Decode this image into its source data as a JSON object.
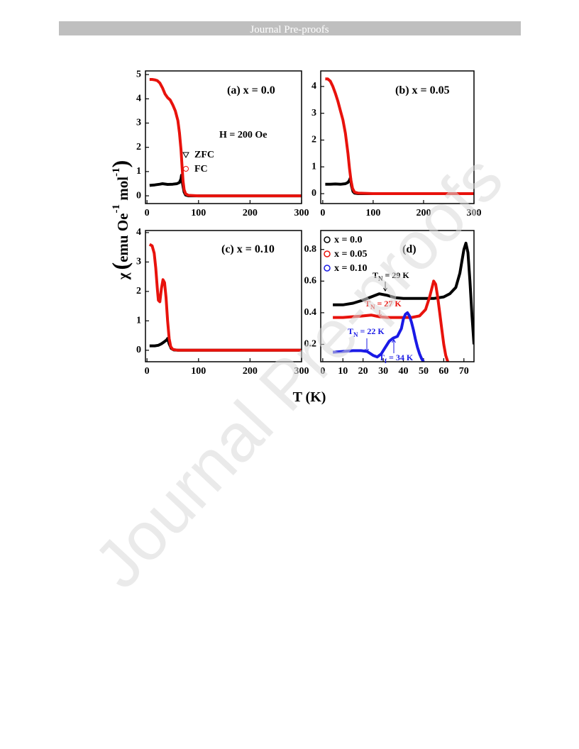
{
  "header": {
    "title": "Journal Pre-proofs"
  },
  "watermark": "Journal Pre-proofs",
  "figure": {
    "xlabel": "T (K)",
    "ylabel": {
      "symbol": "χ",
      "open": "(",
      "unit1": "emu Oe",
      "sup1": "-1",
      "unit2": " mol",
      "sup2": "-1",
      "close": ")"
    }
  },
  "chart_data": [
    {
      "type": "line",
      "title": "(a) x = 0.0",
      "annotations": [
        "H = 200 Oe"
      ],
      "xlim": [
        -3,
        300
      ],
      "ylim": [
        -0.32,
        5.15
      ],
      "xticks": [
        0,
        100,
        200,
        300
      ],
      "yticks": [
        0,
        1,
        2,
        3,
        4,
        5
      ],
      "series": [
        {
          "name": "ZFC",
          "color": "#000000",
          "marker": "triangle",
          "x": [
            5,
            15,
            25,
            30,
            40,
            50,
            58,
            63,
            66,
            67,
            69,
            72,
            75,
            80,
            100,
            150,
            200,
            250,
            300
          ],
          "values": [
            0.43,
            0.45,
            0.48,
            0.5,
            0.47,
            0.48,
            0.5,
            0.55,
            0.7,
            0.85,
            0.5,
            0.15,
            0.03,
            0,
            0,
            0,
            0,
            0,
            0
          ]
        },
        {
          "name": "FC",
          "color": "#e8120c",
          "marker": "circle",
          "x": [
            5,
            10,
            15,
            20,
            25,
            30,
            35,
            40,
            45,
            50,
            55,
            60,
            63,
            66,
            68,
            70,
            72,
            75,
            80,
            100,
            150,
            200,
            250,
            300
          ],
          "values": [
            4.8,
            4.8,
            4.78,
            4.75,
            4.65,
            4.45,
            4.2,
            4.05,
            3.95,
            3.75,
            3.5,
            3.1,
            2.6,
            1.9,
            1.2,
            0.6,
            0.25,
            0.08,
            0.02,
            0,
            0,
            0,
            0,
            0
          ]
        }
      ]
    },
    {
      "type": "line",
      "title": "(b) x = 0.05",
      "xlim": [
        -4,
        300
      ],
      "ylim": [
        -0.37,
        4.58
      ],
      "xticks": [
        0,
        100,
        200,
        300
      ],
      "yticks": [
        0,
        1,
        2,
        3,
        4
      ],
      "series": [
        {
          "color": "#000000",
          "marker": "triangle",
          "x": [
            5,
            15,
            25,
            35,
            45,
            50,
            53,
            55,
            57,
            60,
            63,
            70,
            100,
            150,
            200,
            250,
            300
          ],
          "values": [
            0.35,
            0.35,
            0.36,
            0.35,
            0.37,
            0.42,
            0.5,
            0.6,
            0.3,
            0.08,
            0.02,
            0,
            0,
            0,
            0,
            0,
            0
          ]
        },
        {
          "color": "#e8120c",
          "marker": "circle",
          "x": [
            5,
            10,
            15,
            20,
            25,
            30,
            35,
            40,
            45,
            50,
            53,
            56,
            59,
            63,
            70,
            100,
            150,
            200,
            250,
            300
          ],
          "values": [
            4.28,
            4.28,
            4.2,
            4.0,
            3.75,
            3.45,
            3.1,
            2.75,
            2.25,
            1.5,
            0.95,
            0.5,
            0.2,
            0.06,
            0.02,
            0,
            0,
            0,
            0,
            0
          ]
        }
      ]
    },
    {
      "type": "line",
      "title": "(c) x = 0.10",
      "xlim": [
        -3,
        300
      ],
      "ylim": [
        -0.39,
        4.07
      ],
      "xticks": [
        0,
        100,
        200,
        300
      ],
      "yticks": [
        0,
        1,
        2,
        3,
        4
      ],
      "series": [
        {
          "color": "#000000",
          "marker": "triangle",
          "x": [
            5,
            15,
            22,
            28,
            33,
            38,
            40,
            43,
            47,
            52,
            60,
            100,
            150,
            200,
            250,
            300
          ],
          "values": [
            0.15,
            0.15,
            0.17,
            0.22,
            0.28,
            0.35,
            0.4,
            0.22,
            0.06,
            0.01,
            0,
            0,
            0,
            0,
            0,
            0
          ]
        },
        {
          "color": "#e8120c",
          "marker": "circle",
          "x": [
            5,
            10,
            14,
            17,
            20,
            22,
            25,
            28,
            31,
            34,
            37,
            40,
            43,
            46,
            50,
            60,
            100,
            150,
            200,
            250,
            300
          ],
          "values": [
            3.6,
            3.55,
            3.3,
            2.8,
            2.1,
            1.7,
            1.65,
            2.1,
            2.4,
            2.3,
            1.8,
            1.0,
            0.4,
            0.12,
            0.03,
            0,
            0,
            0,
            0,
            0,
            0
          ]
        }
      ]
    },
    {
      "type": "line",
      "title": "(d)",
      "annotations": [
        {
          "main": "T",
          "sub": "N",
          "rest": " = 29 K",
          "color": "#000000"
        },
        {
          "main": "T",
          "sub": "N",
          "rest": " = 27 K",
          "color": "#e8120c"
        },
        {
          "main": "T",
          "sub": "N",
          "rest": " = 22 K",
          "color": "#1a1ae6"
        },
        {
          "main": "T",
          "sub": "f",
          "rest": " = 34 K",
          "color": "#1a1ae6"
        }
      ],
      "xlim": [
        -1,
        75
      ],
      "ylim": [
        0.09,
        0.92
      ],
      "xticks": [
        0,
        10,
        20,
        30,
        40,
        50,
        60,
        70
      ],
      "yticks": [
        0.2,
        0.4,
        0.6,
        0.8
      ],
      "series": [
        {
          "name": "x = 0.0",
          "color": "#000000",
          "x": [
            5,
            10,
            15,
            20,
            24,
            28,
            32,
            36,
            40,
            45,
            50,
            55,
            60,
            63,
            66,
            68,
            70,
            71,
            72,
            73,
            74,
            75
          ],
          "values": [
            0.45,
            0.45,
            0.46,
            0.48,
            0.5,
            0.52,
            0.51,
            0.495,
            0.49,
            0.49,
            0.49,
            0.49,
            0.5,
            0.52,
            0.56,
            0.65,
            0.8,
            0.84,
            0.78,
            0.6,
            0.38,
            0.2
          ]
        },
        {
          "name": "x = 0.05",
          "color": "#e8120c",
          "x": [
            5,
            10,
            15,
            20,
            24,
            28,
            32,
            38,
            44,
            48,
            51,
            53,
            55,
            56,
            57,
            58,
            59,
            60,
            61,
            62
          ],
          "values": [
            0.37,
            0.37,
            0.375,
            0.38,
            0.385,
            0.375,
            0.37,
            0.37,
            0.37,
            0.38,
            0.42,
            0.5,
            0.6,
            0.58,
            0.5,
            0.4,
            0.3,
            0.2,
            0.13,
            0.09
          ]
        },
        {
          "name": "x = 0.10",
          "color": "#1a1ae6",
          "x": [
            5,
            10,
            15,
            19,
            22,
            25,
            27,
            29,
            31,
            33,
            35,
            37,
            39,
            40,
            41,
            42,
            43,
            44,
            45,
            46,
            47,
            48,
            49,
            50
          ],
          "values": [
            0.15,
            0.155,
            0.16,
            0.16,
            0.155,
            0.13,
            0.12,
            0.14,
            0.18,
            0.22,
            0.24,
            0.25,
            0.3,
            0.36,
            0.39,
            0.4,
            0.38,
            0.34,
            0.29,
            0.23,
            0.18,
            0.14,
            0.11,
            0.09
          ]
        }
      ]
    }
  ]
}
